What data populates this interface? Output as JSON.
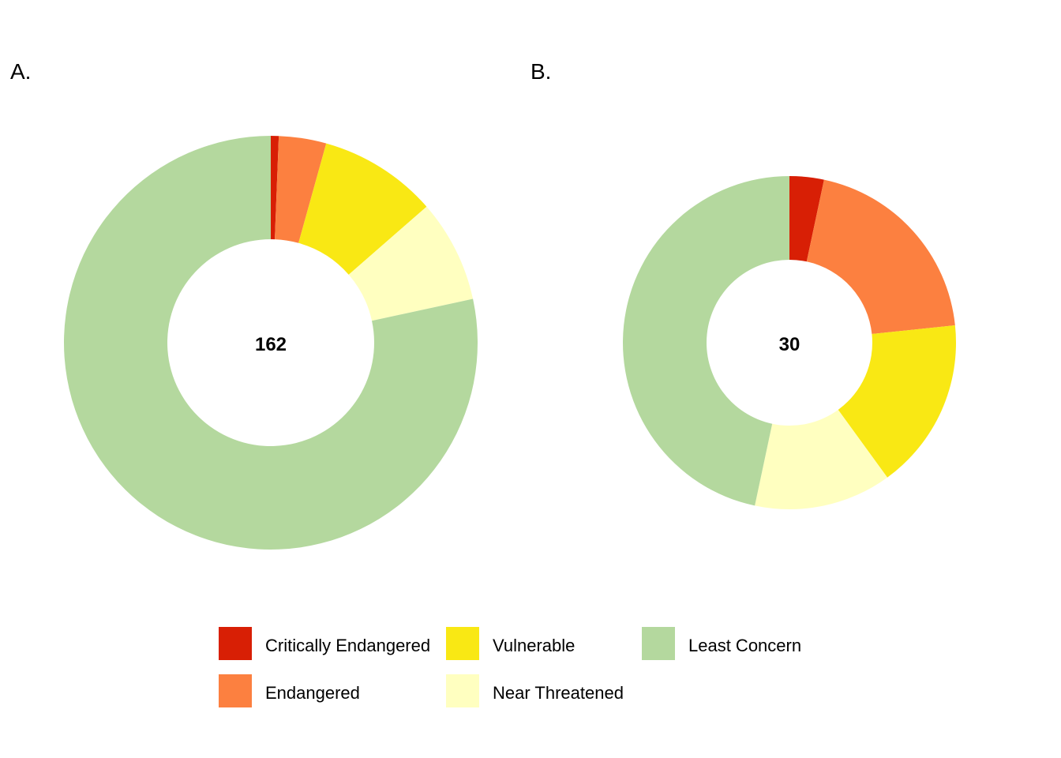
{
  "chart_data": [
    {
      "type": "pie",
      "panel_label": "A.",
      "center_label": "162",
      "total": 162,
      "categories": [
        "Critically Endangered",
        "Endangered",
        "Vulnerable",
        "Near Threatened",
        "Least Concern"
      ],
      "values": [
        1,
        6,
        15,
        13,
        127
      ]
    },
    {
      "type": "pie",
      "panel_label": "B.",
      "center_label": "30",
      "total": 30,
      "categories": [
        "Critically Endangered",
        "Endangered",
        "Vulnerable",
        "Near Threatened",
        "Least Concern"
      ],
      "values": [
        1,
        6,
        5,
        4,
        14
      ]
    }
  ],
  "legend": {
    "placement": "bottom",
    "items": [
      {
        "label": "Critically Endangered",
        "color": "#d81f05"
      },
      {
        "label": "Endangered",
        "color": "#fc8040"
      },
      {
        "label": "Vulnerable",
        "color": "#f9e814"
      },
      {
        "label": "Near Threatened",
        "color": "#ffffc0"
      },
      {
        "label": "Least Concern",
        "color": "#b4d89e"
      }
    ]
  }
}
